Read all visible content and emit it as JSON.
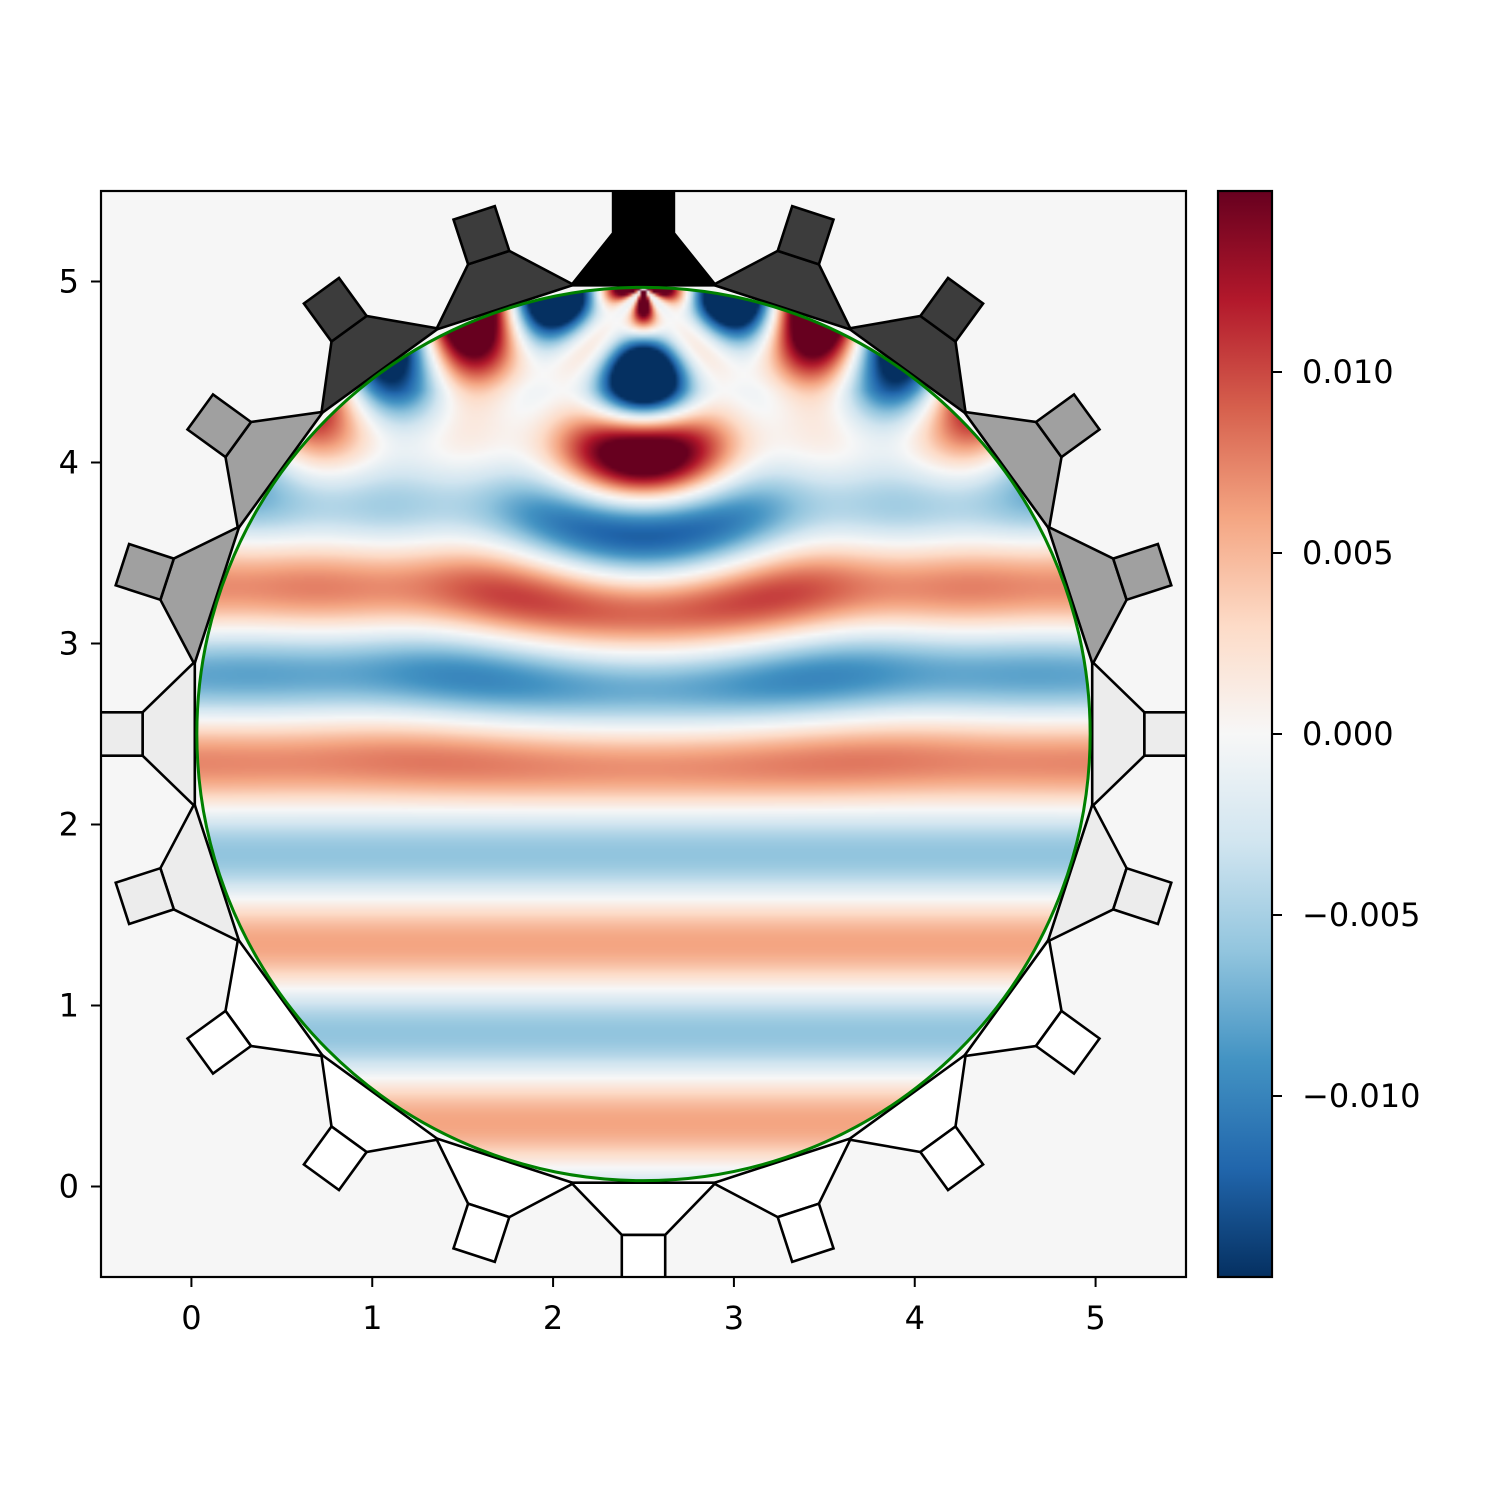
{
  "chart_data": {
    "type": "heatmap",
    "title": "",
    "xlabel": "",
    "ylabel": "",
    "xlim": [
      -0.5,
      5.5
    ],
    "ylim": [
      -0.5,
      5.5
    ],
    "x_ticks": [
      0,
      1,
      2,
      3,
      4,
      5
    ],
    "x_tick_labels": [
      "0",
      "1",
      "2",
      "3",
      "4",
      "5"
    ],
    "y_ticks": [
      0,
      1,
      2,
      3,
      4,
      5
    ],
    "y_tick_labels": [
      "0",
      "1",
      "2",
      "3",
      "4",
      "5"
    ],
    "colormap": "RdBu_r",
    "colorbar": {
      "range": [
        -0.015,
        0.015
      ],
      "ticks": [
        -0.01,
        -0.005,
        0.0,
        0.005,
        0.01
      ],
      "tick_labels": [
        "−0.010",
        "−0.005",
        "0.000",
        "0.005",
        "0.010"
      ]
    },
    "domain": {
      "shape": "circle",
      "center": [
        2.5,
        2.5
      ],
      "radius": 2.47,
      "outline_color": "#008000"
    },
    "electrodes": {
      "count": 20,
      "source_angle_deg": 90,
      "fills": [
        "#000000",
        "#3c3c3c",
        "#3c3c3c",
        "#a0a0a0",
        "#a0a0a0",
        "#ececec",
        "#ececec",
        "#ffffff"
      ]
    },
    "background_color": "#f6f6f6"
  }
}
